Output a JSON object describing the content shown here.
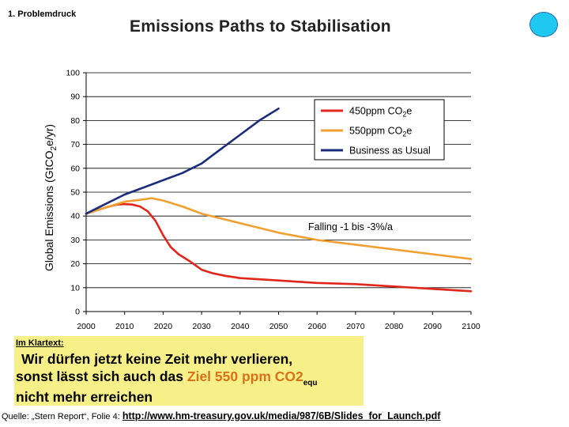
{
  "header": {
    "section": "1. Problemdruck"
  },
  "chart_data": {
    "type": "line",
    "title": "Emissions Paths to Stabilisation",
    "ylabel": "Global Emissions (GtCO",
    "ylabel_sub": "2",
    "ylabel_end": "e/yr)",
    "xlabel": "",
    "xlim": [
      2000,
      2100
    ],
    "ylim": [
      0,
      100
    ],
    "x_ticks": [
      "2000",
      "2010",
      "2020",
      "2030",
      "2040",
      "2050",
      "2060",
      "2070",
      "2080",
      "2090",
      "2100"
    ],
    "y_ticks": [
      "0",
      "10",
      "20",
      "30",
      "40",
      "50",
      "60",
      "70",
      "80",
      "90",
      "100"
    ],
    "grid": "horizontal",
    "legend_position": "top-right",
    "legend": [
      {
        "name": "450ppm CO",
        "sub": "2",
        "suffix": "e",
        "color": "#e1261c"
      },
      {
        "name": "550ppm CO",
        "sub": "2",
        "suffix": "e",
        "color": "#f0a030"
      },
      {
        "name": "Business as Usual",
        "sub": "",
        "suffix": "",
        "color": "#1b2d7a"
      }
    ],
    "annotation": "Falling -1 bis -3%/a",
    "series": [
      {
        "name": "450ppm CO2e",
        "color": "#e1261c",
        "x": [
          2000,
          2003,
          2006,
          2008,
          2010,
          2012,
          2014,
          2016,
          2018,
          2020,
          2022,
          2024,
          2027,
          2030,
          2033,
          2036,
          2040,
          2045,
          2050,
          2055,
          2060,
          2070,
          2080,
          2090,
          2100
        ],
        "y": [
          41,
          42.5,
          44,
          44.8,
          45,
          44.8,
          44,
          42,
          38,
          32,
          27,
          24,
          21,
          17.5,
          16,
          15,
          14,
          13.5,
          13,
          12.5,
          12,
          11.5,
          10.5,
          9.5,
          8.5
        ]
      },
      {
        "name": "550ppm CO2e",
        "color": "#f0a030",
        "x": [
          2000,
          2005,
          2010,
          2015,
          2017,
          2020,
          2025,
          2030,
          2040,
          2050,
          2060,
          2070,
          2080,
          2090,
          2100
        ],
        "y": [
          41,
          43.5,
          46,
          47,
          47.5,
          46.5,
          44,
          41,
          37,
          33,
          30,
          28,
          26,
          24,
          22
        ]
      },
      {
        "name": "Business as Usual",
        "color": "#1b2d7a",
        "x": [
          2000,
          2005,
          2010,
          2015,
          2020,
          2025,
          2030,
          2035,
          2040,
          2045,
          2050
        ],
        "y": [
          41,
          45,
          49,
          52,
          55,
          58,
          62,
          68,
          74,
          80,
          85
        ]
      }
    ]
  },
  "callout": {
    "heading": "Im Klartext:",
    "line1": "Wir dürfen jetzt keine Zeit mehr verlieren,",
    "line2_pre": "sonst lässt sich auch das ",
    "line2_highlight": "Ziel 550 ppm CO2",
    "line2_sub": "equ",
    "line3": "nicht mehr erreichen"
  },
  "source": {
    "prefix": "Quelle: „Stern Report“, Folie 4: ",
    "url": "http://www.hm-treasury.gov.uk/media/987/6B/Slides_for_Launch.pdf"
  }
}
